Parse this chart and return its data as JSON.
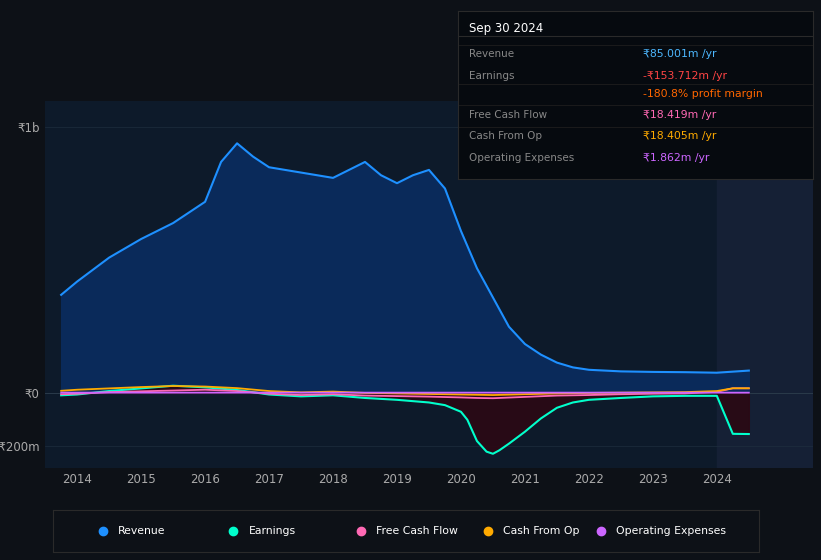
{
  "bg_color": "#0d1117",
  "plot_bg_color": "#0d1a2a",
  "title": "Sep 30 2024",
  "info_box_title": "Sep 30 2024",
  "info_box_rows": [
    {
      "label": "Revenue",
      "value": "₹85.001m /yr",
      "value_color": "#4db8ff"
    },
    {
      "label": "Earnings",
      "value": "-₹153.712m /yr",
      "value_color": "#ff4444"
    },
    {
      "label": "",
      "value": "-180.8% profit margin",
      "value_color": "#ff6600"
    },
    {
      "label": "Free Cash Flow",
      "value": "₹18.419m /yr",
      "value_color": "#ff69b4"
    },
    {
      "label": "Cash From Op",
      "value": "₹18.405m /yr",
      "value_color": "#ffaa00"
    },
    {
      "label": "Operating Expenses",
      "value": "₹1.862m /yr",
      "value_color": "#cc66ff"
    }
  ],
  "ylim": [
    -280000000,
    1100000000
  ],
  "y_zero": 0,
  "y_top": 1000000000,
  "y_neg": -200000000,
  "ytick_labels": [
    "₹1b",
    "₹0",
    "-₹200m"
  ],
  "xlim_left": 2013.5,
  "xlim_right": 2025.5,
  "xticks": [
    2014,
    2015,
    2016,
    2017,
    2018,
    2019,
    2020,
    2021,
    2022,
    2023,
    2024
  ],
  "forecast_start": 2024.0,
  "revenue_x": [
    2013.75,
    2014.0,
    2014.5,
    2015.0,
    2015.5,
    2016.0,
    2016.25,
    2016.5,
    2016.75,
    2017.0,
    2017.5,
    2018.0,
    2018.25,
    2018.5,
    2018.75,
    2019.0,
    2019.25,
    2019.5,
    2019.75,
    2020.0,
    2020.25,
    2020.5,
    2020.75,
    2021.0,
    2021.25,
    2021.5,
    2021.75,
    2022.0,
    2022.5,
    2023.0,
    2023.5,
    2024.0,
    2024.5
  ],
  "revenue_y": [
    370000000,
    420000000,
    510000000,
    580000000,
    640000000,
    720000000,
    870000000,
    940000000,
    890000000,
    850000000,
    830000000,
    810000000,
    840000000,
    870000000,
    820000000,
    790000000,
    820000000,
    840000000,
    770000000,
    610000000,
    470000000,
    360000000,
    250000000,
    185000000,
    145000000,
    115000000,
    97000000,
    88000000,
    82000000,
    80000000,
    79000000,
    77000000,
    85000000
  ],
  "revenue_color": "#1e90ff",
  "revenue_fill": "#0a2a5a",
  "earnings_x": [
    2013.75,
    2014.0,
    2014.5,
    2015.0,
    2015.5,
    2016.0,
    2016.5,
    2017.0,
    2017.5,
    2018.0,
    2018.5,
    2019.0,
    2019.25,
    2019.5,
    2019.75,
    2020.0,
    2020.1,
    2020.25,
    2020.4,
    2020.5,
    2020.6,
    2020.75,
    2021.0,
    2021.25,
    2021.5,
    2021.75,
    2022.0,
    2022.5,
    2023.0,
    2023.5,
    2024.0,
    2024.25,
    2024.5
  ],
  "earnings_y": [
    -8000000,
    -5000000,
    8000000,
    18000000,
    28000000,
    22000000,
    12000000,
    -5000000,
    -12000000,
    -8000000,
    -18000000,
    -25000000,
    -30000000,
    -35000000,
    -45000000,
    -70000000,
    -100000000,
    -180000000,
    -220000000,
    -228000000,
    -215000000,
    -190000000,
    -145000000,
    -95000000,
    -55000000,
    -35000000,
    -25000000,
    -18000000,
    -12000000,
    -10000000,
    -10000000,
    -153000000,
    -153712000
  ],
  "earnings_color": "#00ffcc",
  "earnings_fill": "#2a0a15",
  "fcf_x": [
    2013.75,
    2014.0,
    2014.5,
    2015.0,
    2015.5,
    2016.0,
    2016.5,
    2017.0,
    2017.5,
    2018.0,
    2018.5,
    2019.0,
    2019.5,
    2020.0,
    2020.25,
    2020.5,
    2021.0,
    2021.5,
    2022.0,
    2022.5,
    2023.0,
    2023.5,
    2024.0,
    2024.25,
    2024.5
  ],
  "fcf_y": [
    -4000000,
    -2000000,
    4000000,
    7000000,
    10000000,
    13000000,
    8000000,
    -2000000,
    -7000000,
    -4000000,
    -9000000,
    -11000000,
    -13000000,
    -16000000,
    -18000000,
    -19000000,
    -14000000,
    -9000000,
    -7000000,
    -4000000,
    -2000000,
    -1000000,
    5000000,
    18419000,
    18419000
  ],
  "fcf_color": "#ff69b4",
  "cfo_x": [
    2013.75,
    2014.0,
    2014.5,
    2015.0,
    2015.5,
    2016.0,
    2016.5,
    2017.0,
    2017.5,
    2018.0,
    2018.5,
    2019.0,
    2019.5,
    2020.0,
    2020.5,
    2021.0,
    2021.5,
    2022.0,
    2022.5,
    2023.0,
    2023.5,
    2024.0,
    2024.25,
    2024.5
  ],
  "cfo_y": [
    9000000,
    13000000,
    18000000,
    23000000,
    27000000,
    25000000,
    19000000,
    8000000,
    3000000,
    6000000,
    1000000,
    -1000000,
    -3000000,
    -5000000,
    -7000000,
    -4000000,
    -1000000,
    1000000,
    2000000,
    3000000,
    4000000,
    8000000,
    18405000,
    18405000
  ],
  "cfo_color": "#ffaa00",
  "oe_x": [
    2013.75,
    2014.0,
    2014.5,
    2015.0,
    2015.5,
    2016.0,
    2016.5,
    2017.0,
    2017.5,
    2018.0,
    2018.5,
    2019.0,
    2019.5,
    2020.0,
    2020.5,
    2021.0,
    2021.5,
    2022.0,
    2022.5,
    2023.0,
    2023.5,
    2024.0,
    2024.25,
    2024.5
  ],
  "oe_y": [
    2000000,
    2000000,
    2000000,
    2000000,
    2000000,
    2000000,
    2000000,
    2000000,
    2000000,
    2000000,
    2000000,
    2000000,
    2000000,
    2000000,
    2000000,
    2000000,
    2000000,
    2000000,
    2000000,
    2000000,
    2000000,
    2000000,
    1862000,
    1862000
  ],
  "oe_color": "#cc66ff",
  "legend_items": [
    {
      "label": "Revenue",
      "color": "#1e90ff"
    },
    {
      "label": "Earnings",
      "color": "#00ffcc"
    },
    {
      "label": "Free Cash Flow",
      "color": "#ff69b4"
    },
    {
      "label": "Cash From Op",
      "color": "#ffaa00"
    },
    {
      "label": "Operating Expenses",
      "color": "#cc66ff"
    }
  ]
}
